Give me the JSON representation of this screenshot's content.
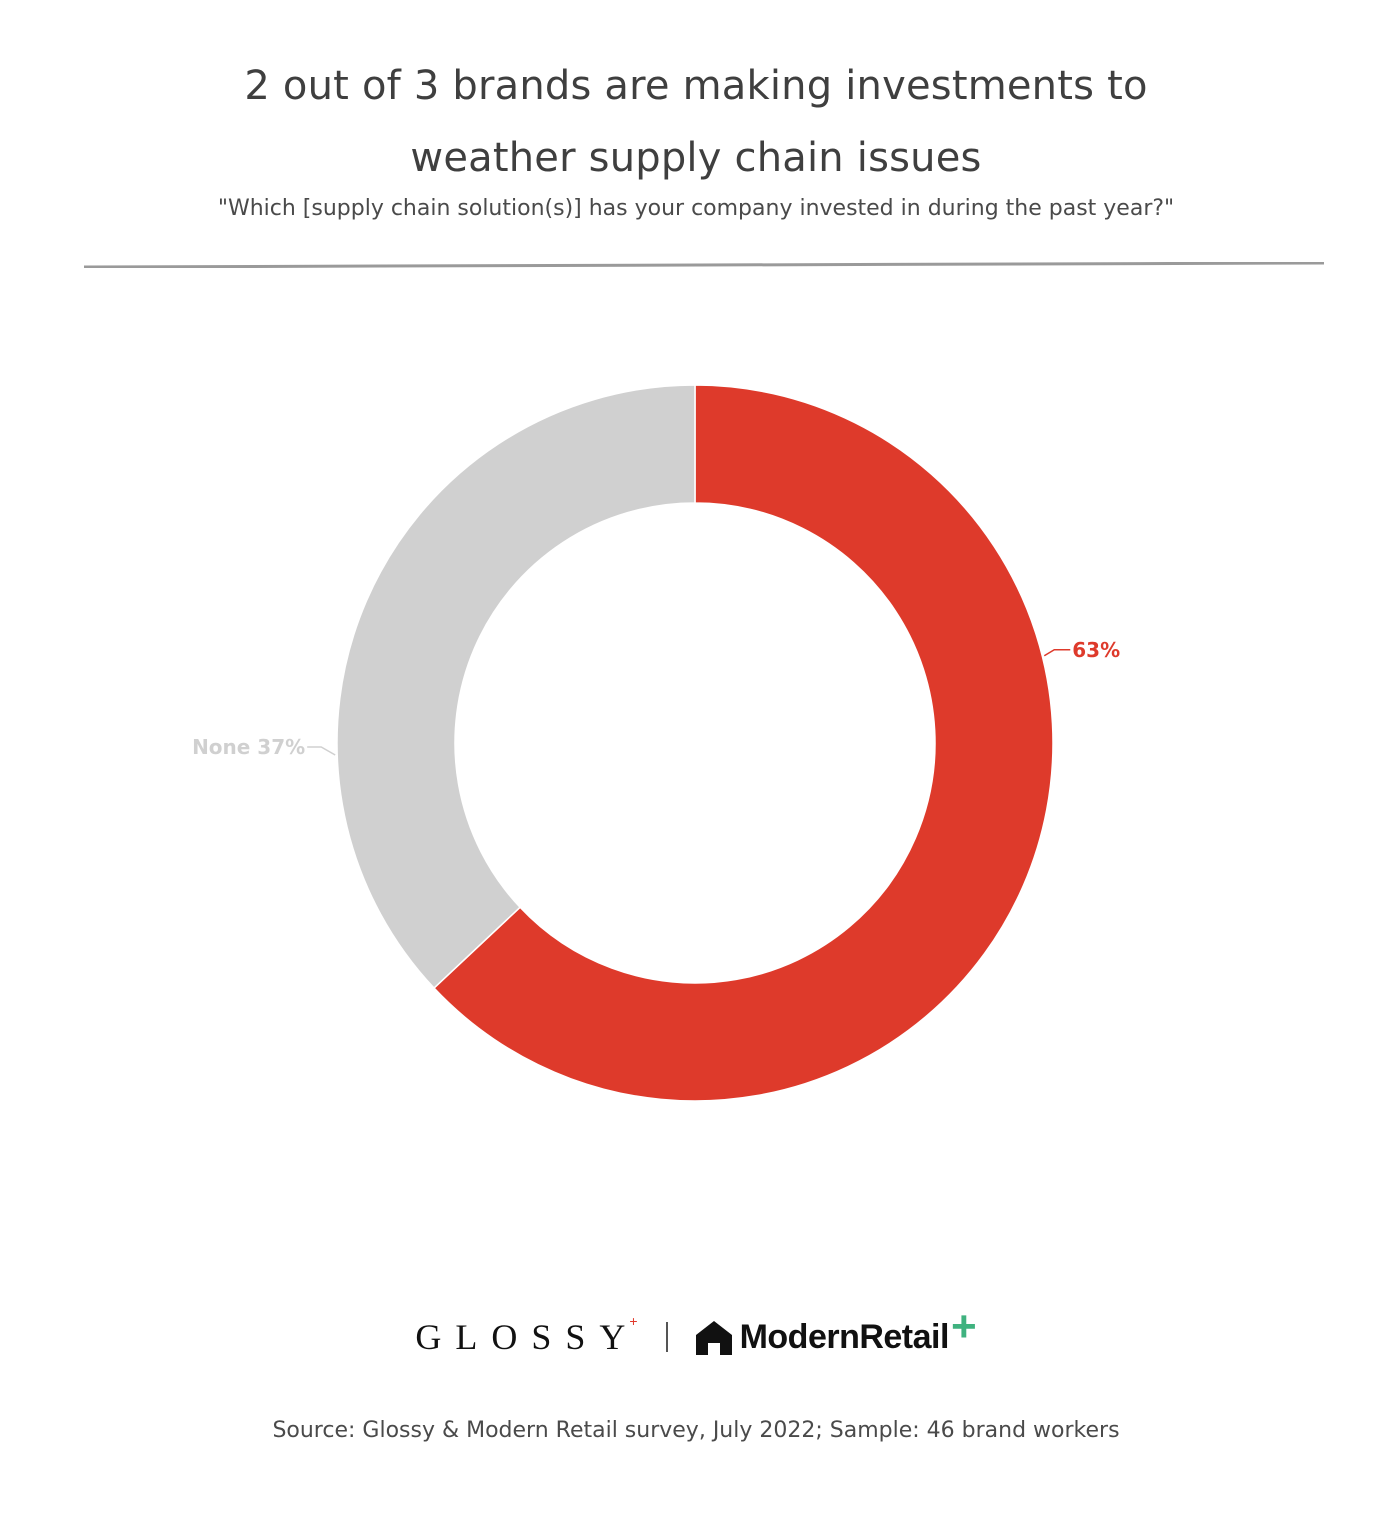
{
  "header": {
    "title_line1": "2 out of 3 brands are making investments to",
    "title_line2": "weather supply chain issues",
    "subtitle": "\"Which [supply chain solution(s)] has your company invested in during the past year?\""
  },
  "chart_data": {
    "type": "pie",
    "variant": "donut",
    "title": "2 out of 3 brands are making investments to weather supply chain issues",
    "subtitle": "\"Which [supply chain solution(s)] has your company invested in during the past year?\"",
    "slices": [
      {
        "name": "",
        "value": 63,
        "label": "63%",
        "color": "#de3a2b"
      },
      {
        "name": "None",
        "value": 37,
        "label": "None 37%",
        "color": "#d0d0d0"
      }
    ],
    "start": "top",
    "direction": "clockwise",
    "label_colors": [
      "#de3a2b",
      "#d0d0d0"
    ]
  },
  "footer": {
    "brand1": "GLOSSY",
    "brand1_mark": "+",
    "brand2": "ModernRetail",
    "brand2_mark": "+",
    "source": "Source: Glossy & Modern Retail survey, July 2022; Sample: 46 brand workers"
  },
  "colors": {
    "accent_red": "#de3a2b",
    "neutral_gray": "#d0d0d0",
    "brand_green": "#3fb27f",
    "divider": "#9a9a9a"
  }
}
